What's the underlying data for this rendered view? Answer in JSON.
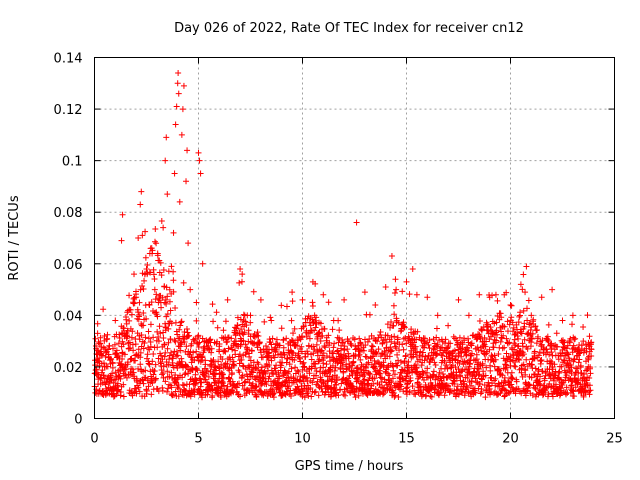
{
  "chart_data": {
    "type": "scatter",
    "title": "Day 026 of 2022, Rate Of TEC Index for receiver cn12",
    "xlabel": "GPS time / hours",
    "ylabel": "ROTI / TECUs",
    "xlim": [
      0,
      25
    ],
    "ylim": [
      0,
      0.14
    ],
    "x_ticks": [
      0,
      5,
      10,
      15,
      20,
      25
    ],
    "y_ticks": [
      0,
      0.02,
      0.04,
      0.06,
      0.08,
      0.1,
      0.12,
      0.14
    ],
    "x_tick_labels": [
      "0",
      "5",
      "10",
      "15",
      "20",
      "25"
    ],
    "y_tick_labels": [
      "0",
      "0.02",
      "0.04",
      "0.06",
      "0.08",
      "0.1",
      "0.12",
      "0.14"
    ],
    "grid": true,
    "marker": "+",
    "marker_color": "#ff0000",
    "series": [
      {
        "name": "ROTI",
        "points": [
          [
            0.1,
            0.017
          ],
          [
            0.15,
            0.033
          ],
          [
            0.3,
            0.026
          ],
          [
            0.5,
            0.02
          ],
          [
            0.8,
            0.015
          ],
          [
            1.0,
            0.038
          ],
          [
            1.3,
            0.069
          ],
          [
            1.35,
            0.079
          ],
          [
            1.6,
            0.034
          ],
          [
            1.9,
            0.056
          ],
          [
            2.0,
            0.047
          ],
          [
            2.1,
            0.07
          ],
          [
            2.2,
            0.083
          ],
          [
            2.25,
            0.088
          ],
          [
            2.3,
            0.071
          ],
          [
            2.5,
            0.058
          ],
          [
            2.7,
            0.066
          ],
          [
            2.9,
            0.05
          ],
          [
            3.2,
            0.043
          ],
          [
            3.3,
            0.074
          ],
          [
            3.4,
            0.1
          ],
          [
            3.45,
            0.109
          ],
          [
            3.5,
            0.087
          ],
          [
            3.7,
            0.059
          ],
          [
            3.8,
            0.072
          ],
          [
            3.85,
            0.095
          ],
          [
            3.9,
            0.114
          ],
          [
            3.95,
            0.121
          ],
          [
            4.0,
            0.13
          ],
          [
            4.02,
            0.134
          ],
          [
            4.05,
            0.126
          ],
          [
            4.1,
            0.084
          ],
          [
            4.2,
            0.11
          ],
          [
            4.25,
            0.12
          ],
          [
            4.3,
            0.129
          ],
          [
            4.4,
            0.092
          ],
          [
            4.45,
            0.104
          ],
          [
            4.5,
            0.068
          ],
          [
            4.6,
            0.05
          ],
          [
            4.9,
            0.045
          ],
          [
            5.0,
            0.103
          ],
          [
            5.05,
            0.1
          ],
          [
            5.1,
            0.095
          ],
          [
            5.2,
            0.06
          ],
          [
            5.5,
            0.03
          ],
          [
            6.0,
            0.028
          ],
          [
            6.4,
            0.046
          ],
          [
            6.8,
            0.03
          ],
          [
            7.0,
            0.058
          ],
          [
            7.1,
            0.056
          ],
          [
            7.5,
            0.04
          ],
          [
            8.0,
            0.046
          ],
          [
            8.5,
            0.038
          ],
          [
            9.0,
            0.035
          ],
          [
            9.5,
            0.049
          ],
          [
            10.0,
            0.046
          ],
          [
            10.5,
            0.053
          ],
          [
            11.0,
            0.048
          ],
          [
            11.5,
            0.038
          ],
          [
            12.0,
            0.046
          ],
          [
            12.6,
            0.076
          ],
          [
            13.0,
            0.049
          ],
          [
            13.5,
            0.044
          ],
          [
            14.0,
            0.051
          ],
          [
            14.3,
            0.063
          ],
          [
            14.5,
            0.05
          ],
          [
            15.0,
            0.053
          ],
          [
            15.3,
            0.058
          ],
          [
            15.5,
            0.048
          ],
          [
            16.0,
            0.047
          ],
          [
            16.5,
            0.04
          ],
          [
            17.0,
            0.036
          ],
          [
            17.5,
            0.046
          ],
          [
            18.0,
            0.04
          ],
          [
            18.5,
            0.048
          ],
          [
            19.0,
            0.047
          ],
          [
            19.3,
            0.048
          ],
          [
            19.7,
            0.048
          ],
          [
            20.0,
            0.044
          ],
          [
            20.5,
            0.052
          ],
          [
            20.7,
            0.049
          ],
          [
            21.0,
            0.04
          ],
          [
            21.5,
            0.047
          ],
          [
            22.0,
            0.05
          ],
          [
            22.5,
            0.038
          ],
          [
            23.0,
            0.04
          ],
          [
            23.5,
            0.03
          ],
          [
            23.8,
            0.028
          ]
        ],
        "background_band": {
          "description": "dense cloud of ROTI samples, one per ~30 s, spanning the day",
          "x_range": [
            0,
            23.9
          ],
          "typical_low": 0.008,
          "typical_high": 0.03,
          "sample_count": 3000
        }
      }
    ]
  }
}
